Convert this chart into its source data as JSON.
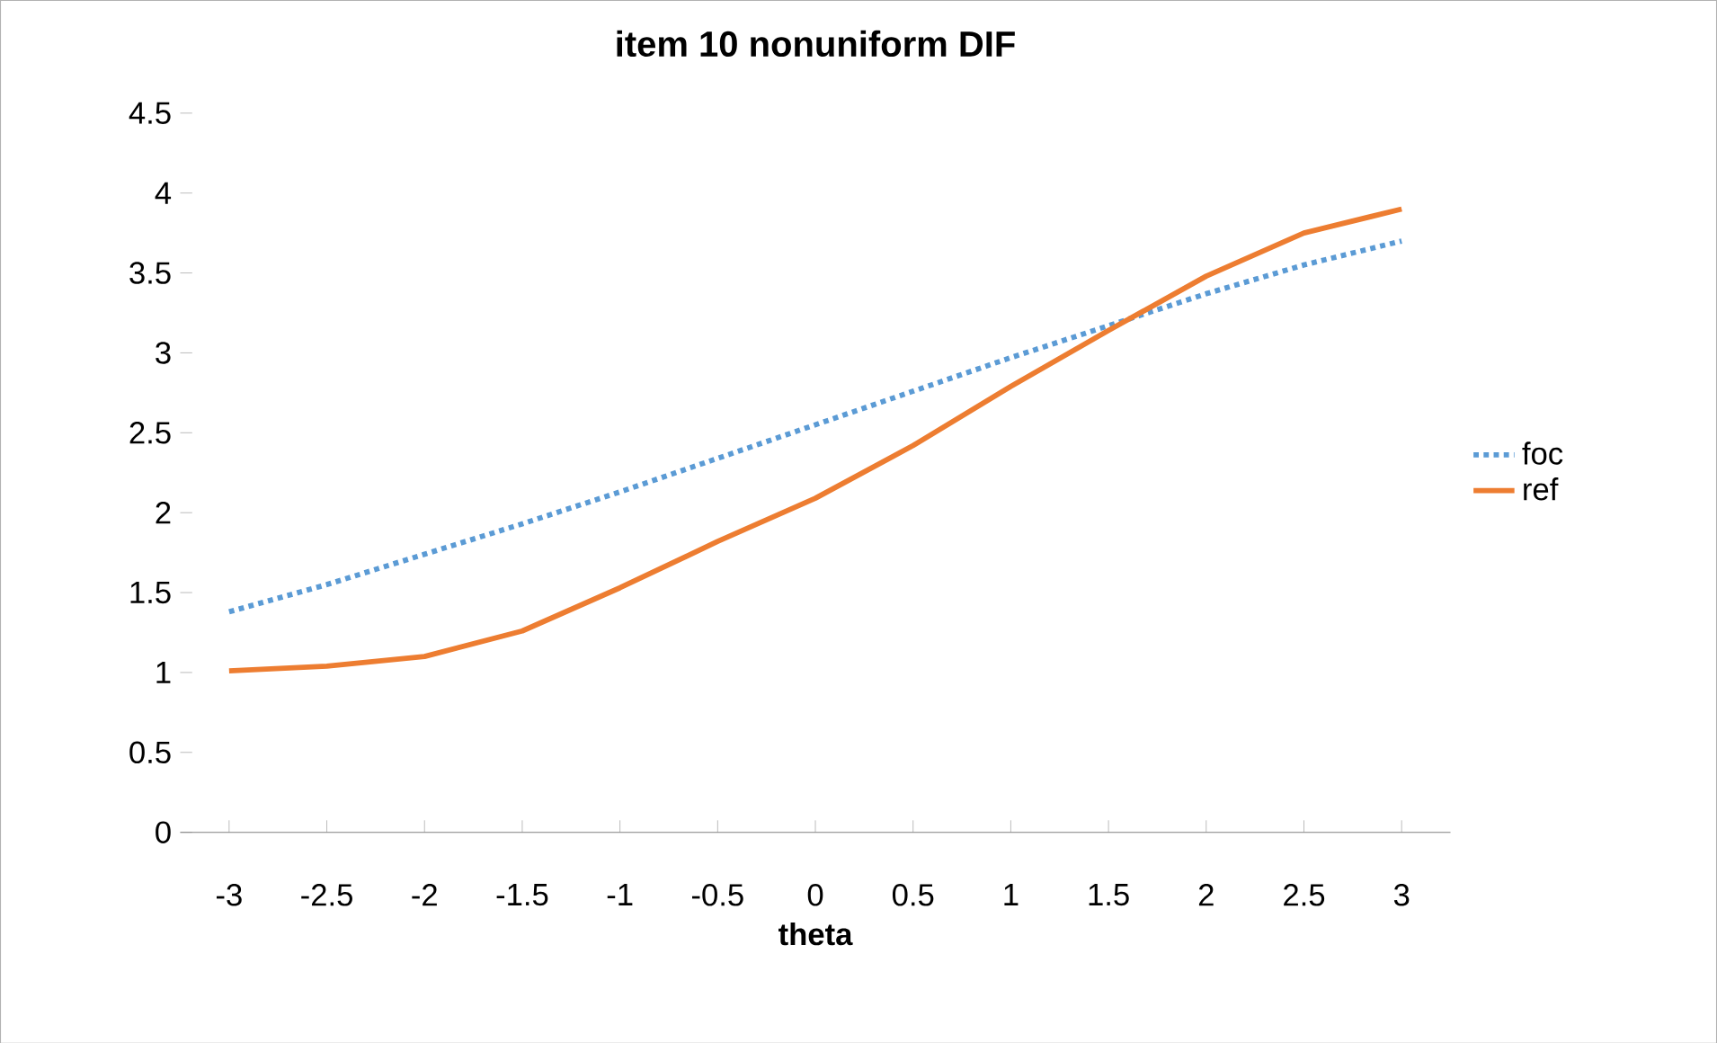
{
  "chart_data": {
    "type": "line",
    "title": "item 10 nonuniform DIF",
    "xlabel": "theta",
    "categories": [
      "-3",
      "-2.5",
      "-2",
      "-1.5",
      "-1",
      "-0.5",
      "0",
      "0.5",
      "1",
      "1.5",
      "2",
      "2.5",
      "3"
    ],
    "series": [
      {
        "name": "foc",
        "color": "#5b9bd5",
        "line_style": "dotted",
        "values": [
          1.38,
          1.55,
          1.74,
          1.93,
          2.13,
          2.34,
          2.55,
          2.76,
          2.97,
          3.17,
          3.37,
          3.55,
          3.7
        ]
      },
      {
        "name": "ref",
        "color": "#ed7d31",
        "line_style": "solid",
        "values": [
          1.01,
          1.04,
          1.1,
          1.26,
          1.53,
          1.82,
          2.09,
          2.42,
          2.79,
          3.14,
          3.48,
          3.75,
          3.9
        ]
      }
    ],
    "ylim": [
      0,
      4.5
    ],
    "yticks": [
      0,
      0.5,
      1,
      1.5,
      2,
      2.5,
      3,
      3.5,
      4,
      4.5
    ],
    "legend": "right",
    "grid": false,
    "marker": "none"
  }
}
